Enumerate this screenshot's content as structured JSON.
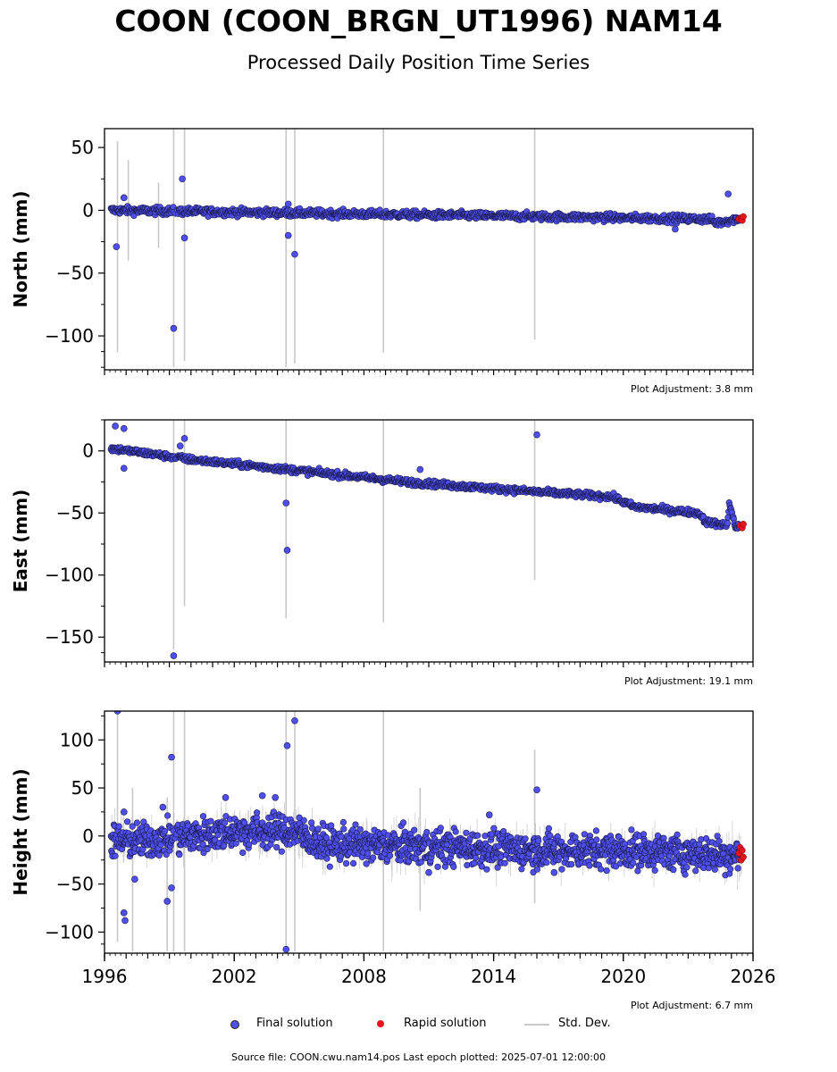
{
  "title": "COON (COON_BRGN_UT1996) NAM14",
  "subtitle": "Processed Daily Position Time Series",
  "legend": {
    "final": "Final solution",
    "rapid": "Rapid solution",
    "std": "Std. Dev."
  },
  "colors": {
    "final": "#4f4ff0",
    "rapid": "#e8141e",
    "std": "#c8c8c8"
  },
  "source": "Source file: COON.cwu.nam14.pos  Last epoch plotted: 2025-07-01 12:00:00",
  "chart_data": [
    {
      "type": "scatter",
      "ylabel": "North (mm)",
      "adjustment": "Plot Adjustment: 3.8 mm",
      "xlim": [
        1996,
        2026
      ],
      "ylim": [
        -127,
        65
      ],
      "yticks": [
        -100,
        -50,
        0,
        50
      ],
      "xticks": [
        1996,
        2002,
        2008,
        2014,
        2020,
        2026
      ],
      "trend": [
        [
          1996.3,
          0
        ],
        [
          2024.0,
          -7
        ],
        [
          2024.3,
          -10
        ],
        [
          2024.9,
          -8
        ],
        [
          2025.5,
          -6
        ]
      ],
      "scatter_mm": 3,
      "outliers": [
        [
          1996.55,
          -29
        ],
        [
          1996.9,
          10
        ],
        [
          1999.2,
          -94
        ],
        [
          1999.6,
          25
        ],
        [
          1999.7,
          -22
        ],
        [
          2004.5,
          -20
        ],
        [
          2004.5,
          5
        ],
        [
          2004.8,
          -35
        ],
        [
          2022.4,
          -15
        ],
        [
          2024.85,
          13
        ]
      ],
      "error_bars": [
        [
          1996.6,
          -113,
          55
        ],
        [
          1997.1,
          -40,
          40
        ],
        [
          1998.5,
          -30,
          22
        ],
        [
          1999.2,
          -125,
          65
        ],
        [
          1999.7,
          -120,
          65
        ],
        [
          2004.4,
          -125,
          65
        ],
        [
          2004.8,
          -122,
          65
        ],
        [
          2008.9,
          -113,
          65
        ],
        [
          2015.9,
          -103,
          65
        ]
      ],
      "rapid": [
        [
          2025.35,
          -7
        ],
        [
          2025.45,
          -6
        ],
        [
          2025.5,
          -8
        ],
        [
          2025.55,
          -5
        ]
      ]
    },
    {
      "type": "scatter",
      "ylabel": "East (mm)",
      "adjustment": "Plot Adjustment: 19.1 mm",
      "xlim": [
        1996,
        2026
      ],
      "ylim": [
        -170,
        25
      ],
      "yticks": [
        -150,
        -100,
        -50,
        0
      ],
      "xticks": [
        1996,
        2002,
        2008,
        2014,
        2020,
        2026
      ],
      "trend": [
        [
          1996.3,
          2
        ],
        [
          1998.0,
          -2
        ],
        [
          2000.0,
          -7
        ],
        [
          2004.0,
          -14
        ],
        [
          2010.0,
          -25
        ],
        [
          2016.0,
          -33
        ],
        [
          2019.5,
          -37
        ],
        [
          2020.5,
          -45
        ],
        [
          2023.5,
          -50
        ],
        [
          2023.8,
          -57
        ],
        [
          2024.8,
          -60
        ],
        [
          2024.9,
          -42
        ],
        [
          2025.2,
          -62
        ],
        [
          2025.5,
          -60
        ]
      ],
      "scatter_mm": 2.5,
      "outliers": [
        [
          1996.5,
          20
        ],
        [
          1996.9,
          18
        ],
        [
          1996.9,
          -14
        ],
        [
          1999.2,
          -165
        ],
        [
          1999.5,
          4
        ],
        [
          1999.7,
          10
        ],
        [
          2004.4,
          -42
        ],
        [
          2004.45,
          -80
        ],
        [
          2010.6,
          -15
        ],
        [
          2016.0,
          13
        ]
      ],
      "error_bars": [
        [
          1999.2,
          -160,
          25
        ],
        [
          1999.7,
          -125,
          25
        ],
        [
          2004.4,
          -135,
          25
        ],
        [
          2008.9,
          -138,
          25
        ],
        [
          2015.9,
          -104,
          25
        ]
      ],
      "rapid": [
        [
          2025.4,
          -60
        ],
        [
          2025.5,
          -62
        ],
        [
          2025.55,
          -59
        ]
      ]
    },
    {
      "type": "scatter",
      "ylabel": "Height (mm)",
      "adjustment": "Plot Adjustment: 6.7 mm",
      "xlim": [
        1996,
        2026
      ],
      "ylim": [
        -122,
        130
      ],
      "yticks": [
        -100,
        -50,
        0,
        50,
        100
      ],
      "xticks": [
        1996,
        2002,
        2008,
        2014,
        2020,
        2026
      ],
      "trend": [
        [
          1996.3,
          -5
        ],
        [
          1998.0,
          -5
        ],
        [
          2002.0,
          5
        ],
        [
          2004.8,
          5
        ],
        [
          2006.0,
          -8
        ],
        [
          2012.0,
          -12
        ],
        [
          2016.0,
          -15
        ],
        [
          2020.0,
          -15
        ],
        [
          2025.5,
          -20
        ]
      ],
      "scatter_mm": 18,
      "outliers": [
        [
          1996.6,
          130
        ],
        [
          1996.9,
          25
        ],
        [
          1996.9,
          -80
        ],
        [
          1996.95,
          -88
        ],
        [
          1997.4,
          -45
        ],
        [
          1998.7,
          30
        ],
        [
          1998.9,
          -68
        ],
        [
          1999.1,
          82
        ],
        [
          1999.1,
          -54
        ],
        [
          2001.6,
          40
        ],
        [
          2003.3,
          42
        ],
        [
          2003.9,
          40
        ],
        [
          2004.4,
          -118
        ],
        [
          2004.45,
          94
        ],
        [
          2004.8,
          120
        ],
        [
          2011.0,
          -38
        ],
        [
          2013.8,
          22
        ],
        [
          2016.0,
          48
        ],
        [
          2016.8,
          -38
        ]
      ],
      "error_bars": [
        [
          1996.6,
          -110,
          130
        ],
        [
          1997.3,
          -120,
          50
        ],
        [
          1998.9,
          -120,
          40
        ],
        [
          1999.2,
          -120,
          130
        ],
        [
          1999.7,
          -120,
          130
        ],
        [
          2004.4,
          -120,
          130
        ],
        [
          2004.8,
          -120,
          130
        ],
        [
          2008.9,
          -120,
          130
        ],
        [
          2010.6,
          -78,
          50
        ],
        [
          2015.9,
          -70,
          90
        ]
      ],
      "rapid": [
        [
          2025.35,
          -18
        ],
        [
          2025.4,
          -12
        ],
        [
          2025.45,
          -25
        ],
        [
          2025.5,
          -15
        ],
        [
          2025.55,
          -22
        ]
      ]
    }
  ]
}
